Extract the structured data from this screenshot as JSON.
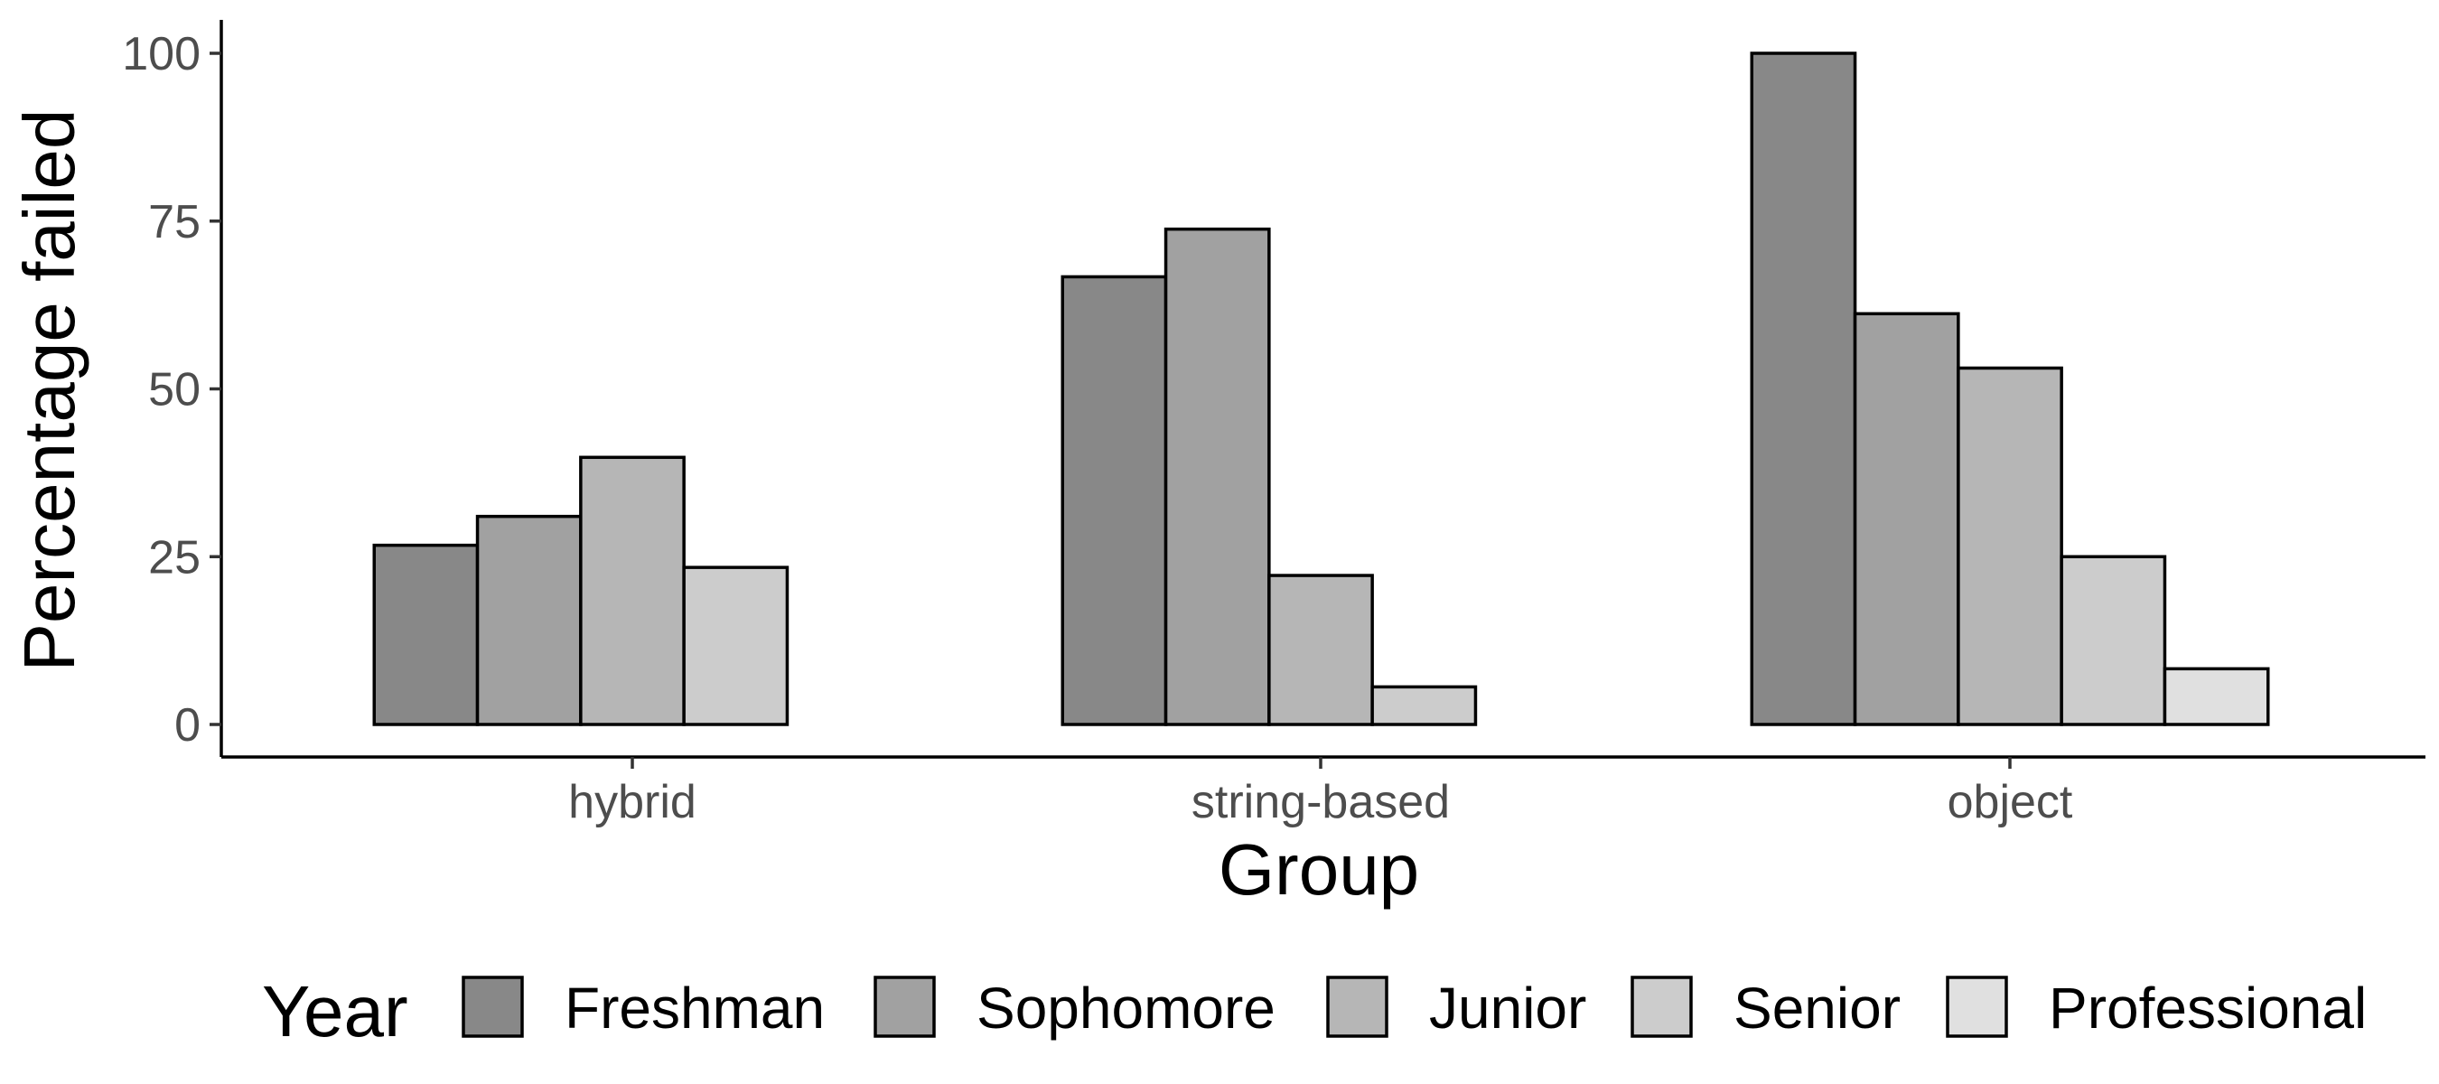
{
  "chart_data": {
    "type": "bar",
    "xlabel": "Group",
    "ylabel": "Percentage failed",
    "categories": [
      "hybrid",
      "string-based",
      "object"
    ],
    "ylim": [
      0,
      100
    ],
    "yticks": [
      0,
      25,
      50,
      75,
      100
    ],
    "legend": {
      "title": "Year",
      "position": "bottom"
    },
    "grid": false,
    "series": [
      {
        "name": "Freshman",
        "color": "#888888",
        "values": [
          26.7,
          66.7,
          100
        ]
      },
      {
        "name": "Sophomore",
        "color": "#a1a1a1",
        "values": [
          31.0,
          73.8,
          61.2
        ]
      },
      {
        "name": "Junior",
        "color": "#b6b6b6",
        "values": [
          39.8,
          22.2,
          53.1
        ]
      },
      {
        "name": "Senior",
        "color": "#cccccc",
        "values": [
          23.4,
          5.6,
          25.0
        ]
      },
      {
        "name": "Professional",
        "color": "#e0e0e0",
        "values": [
          0,
          0,
          8.3
        ]
      }
    ]
  }
}
